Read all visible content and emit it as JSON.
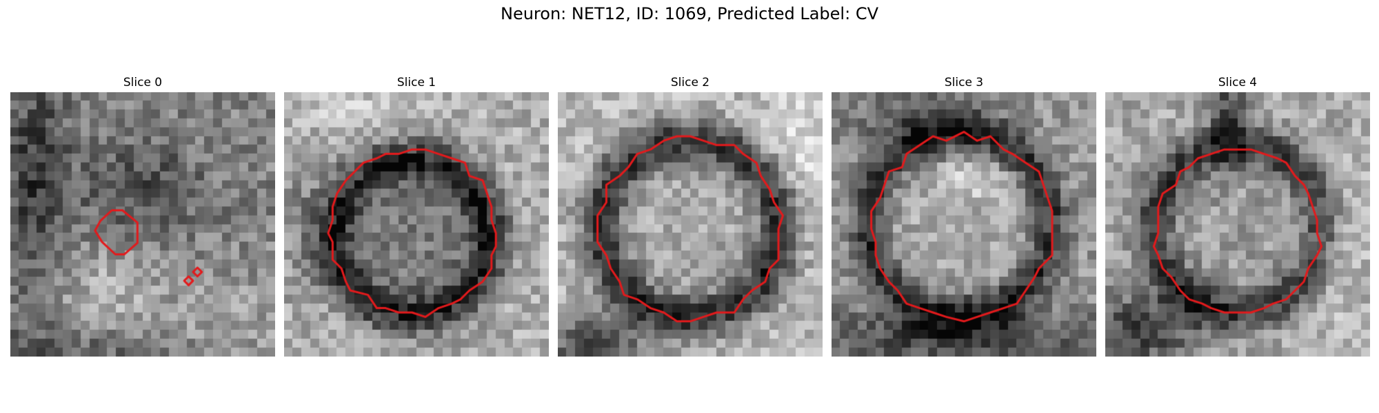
{
  "figure": {
    "title": "Neuron: NET12, ID: 1069, Predicted Label: CV"
  },
  "panels": [
    {
      "title": "Slice 0"
    },
    {
      "title": "Slice 1"
    },
    {
      "title": "Slice 2"
    },
    {
      "title": "Slice 3"
    },
    {
      "title": "Slice 4"
    }
  ],
  "style": {
    "contour_color": "#e31a1c",
    "colormap": "grayscale"
  }
}
